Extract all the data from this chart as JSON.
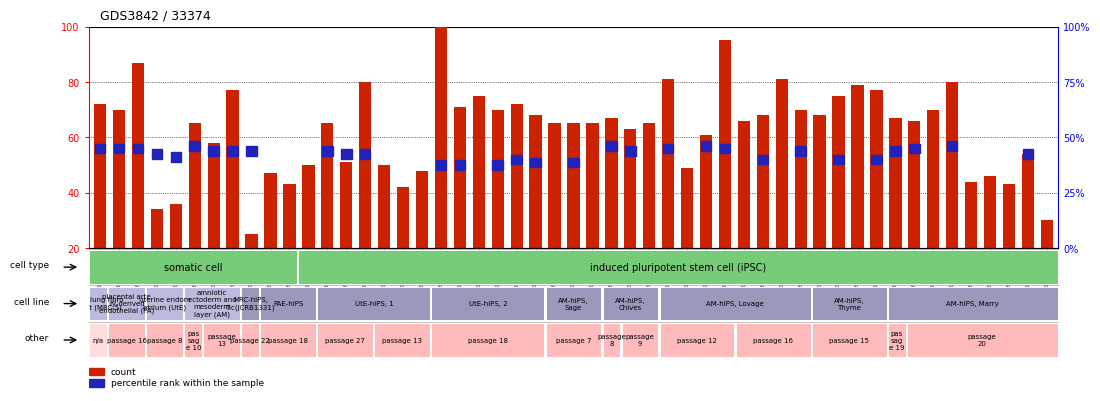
{
  "title": "GDS3842 / 33374",
  "samples": [
    "GSM520665",
    "GSM520666",
    "GSM520667",
    "GSM520704",
    "GSM520705",
    "GSM520711",
    "GSM520692",
    "GSM520693",
    "GSM520694",
    "GSM520689",
    "GSM520690",
    "GSM520691",
    "GSM520668",
    "GSM520669",
    "GSM520670",
    "GSM520713",
    "GSM520714",
    "GSM520715",
    "GSM520695",
    "GSM520696",
    "GSM520697",
    "GSM520709",
    "GSM520710",
    "GSM520712",
    "GSM520698",
    "GSM520699",
    "GSM520700",
    "GSM520701",
    "GSM520702",
    "GSM520703",
    "GSM520671",
    "GSM520672",
    "GSM520673",
    "GSM520681",
    "GSM520682",
    "GSM520680",
    "GSM520677",
    "GSM520678",
    "GSM520679",
    "GSM520674",
    "GSM520675",
    "GSM520676",
    "GSM520686",
    "GSM520687",
    "GSM520688",
    "GSM520683",
    "GSM520684",
    "GSM520685",
    "GSM520708",
    "GSM520706",
    "GSM520707"
  ],
  "bar_heights": [
    72,
    70,
    87,
    34,
    36,
    65,
    58,
    77,
    25,
    47,
    43,
    50,
    65,
    51,
    80,
    50,
    42,
    48,
    100,
    71,
    75,
    70,
    72,
    68,
    65,
    65,
    65,
    67,
    63,
    65,
    81,
    49,
    61,
    95,
    66,
    68,
    81,
    70,
    68,
    75,
    79,
    77,
    67,
    66,
    70,
    80,
    44,
    46,
    43,
    54,
    30
  ],
  "blue_values": [
    56,
    56,
    56,
    54,
    53,
    57,
    55,
    55,
    55,
    null,
    null,
    null,
    55,
    54,
    54,
    null,
    null,
    null,
    50,
    50,
    null,
    50,
    52,
    51,
    null,
    51,
    null,
    57,
    55,
    null,
    56,
    null,
    57,
    56,
    null,
    52,
    null,
    55,
    null,
    52,
    null,
    52,
    55,
    56,
    null,
    57,
    null,
    null,
    null,
    54,
    null
  ],
  "ylim_left": [
    20,
    100
  ],
  "ylim_right": [
    0,
    100
  ],
  "yticks_left": [
    20,
    40,
    60,
    80,
    100
  ],
  "yticks_right": [
    0,
    25,
    50,
    75,
    100
  ],
  "bar_color": "#cc2200",
  "blue_color": "#2222bb",
  "cell_type_segments": [
    {
      "text": "somatic cell",
      "start": 0,
      "end": 11,
      "color": "#77cc77"
    },
    {
      "text": "induced pluripotent stem cell (iPSC)",
      "start": 11,
      "end": 51,
      "color": "#77cc77"
    }
  ],
  "cell_line_segments": [
    {
      "text": "fetal lung fibro\nblast (MRC-5)",
      "start": 0,
      "end": 1,
      "color": "#bbbbdd"
    },
    {
      "text": "placental arte\nry-derived\nendothelial (PA)",
      "start": 1,
      "end": 3,
      "color": "#bbbbdd"
    },
    {
      "text": "uterine endom\netrium (UtE)",
      "start": 3,
      "end": 5,
      "color": "#bbbbdd"
    },
    {
      "text": "amniotic\nectoderm and\nmesoderm\nlayer (AM)",
      "start": 5,
      "end": 8,
      "color": "#bbbbdd"
    },
    {
      "text": "MRC-hiPS,\nTic(JCRB1331)",
      "start": 8,
      "end": 9,
      "color": "#9999bb"
    },
    {
      "text": "PAE-hiPS",
      "start": 9,
      "end": 12,
      "color": "#9999bb"
    },
    {
      "text": "UtE-hiPS, 1",
      "start": 12,
      "end": 18,
      "color": "#9999bb"
    },
    {
      "text": "UtE-hiPS, 2",
      "start": 18,
      "end": 24,
      "color": "#9999bb"
    },
    {
      "text": "AM-hiPS,\nSage",
      "start": 24,
      "end": 27,
      "color": "#9999bb"
    },
    {
      "text": "AM-hiPS,\nChives",
      "start": 27,
      "end": 30,
      "color": "#9999bb"
    },
    {
      "text": "AM-hiPS, Lovage",
      "start": 30,
      "end": 38,
      "color": "#9999bb"
    },
    {
      "text": "AM-hiPS,\nThyme",
      "start": 38,
      "end": 42,
      "color": "#9999bb"
    },
    {
      "text": "AM-hiPS, Marry",
      "start": 42,
      "end": 51,
      "color": "#9999bb"
    }
  ],
  "other_segments": [
    {
      "text": "n/a",
      "start": 0,
      "end": 1,
      "color": "#ffdddd"
    },
    {
      "text": "passage 16",
      "start": 1,
      "end": 3,
      "color": "#ffbbbb"
    },
    {
      "text": "passage 8",
      "start": 3,
      "end": 5,
      "color": "#ffbbbb"
    },
    {
      "text": "pas\nsag\ne 10",
      "start": 5,
      "end": 6,
      "color": "#ffbbbb"
    },
    {
      "text": "passage\n13",
      "start": 6,
      "end": 8,
      "color": "#ffbbbb"
    },
    {
      "text": "passage 22",
      "start": 8,
      "end": 9,
      "color": "#ffbbbb"
    },
    {
      "text": "passage 18",
      "start": 9,
      "end": 12,
      "color": "#ffbbbb"
    },
    {
      "text": "passage 27",
      "start": 12,
      "end": 15,
      "color": "#ffbbbb"
    },
    {
      "text": "passage 13",
      "start": 15,
      "end": 18,
      "color": "#ffbbbb"
    },
    {
      "text": "passage 18",
      "start": 18,
      "end": 24,
      "color": "#ffbbbb"
    },
    {
      "text": "passage 7",
      "start": 24,
      "end": 27,
      "color": "#ffbbbb"
    },
    {
      "text": "passage\n8",
      "start": 27,
      "end": 28,
      "color": "#ffbbbb"
    },
    {
      "text": "passage\n9",
      "start": 28,
      "end": 30,
      "color": "#ffbbbb"
    },
    {
      "text": "passage 12",
      "start": 30,
      "end": 34,
      "color": "#ffbbbb"
    },
    {
      "text": "passage 16",
      "start": 34,
      "end": 38,
      "color": "#ffbbbb"
    },
    {
      "text": "passage 15",
      "start": 38,
      "end": 42,
      "color": "#ffbbbb"
    },
    {
      "text": "pas\nsag\ne 19",
      "start": 42,
      "end": 43,
      "color": "#ffbbbb"
    },
    {
      "text": "passage\n20",
      "start": 43,
      "end": 51,
      "color": "#ffbbbb"
    }
  ]
}
